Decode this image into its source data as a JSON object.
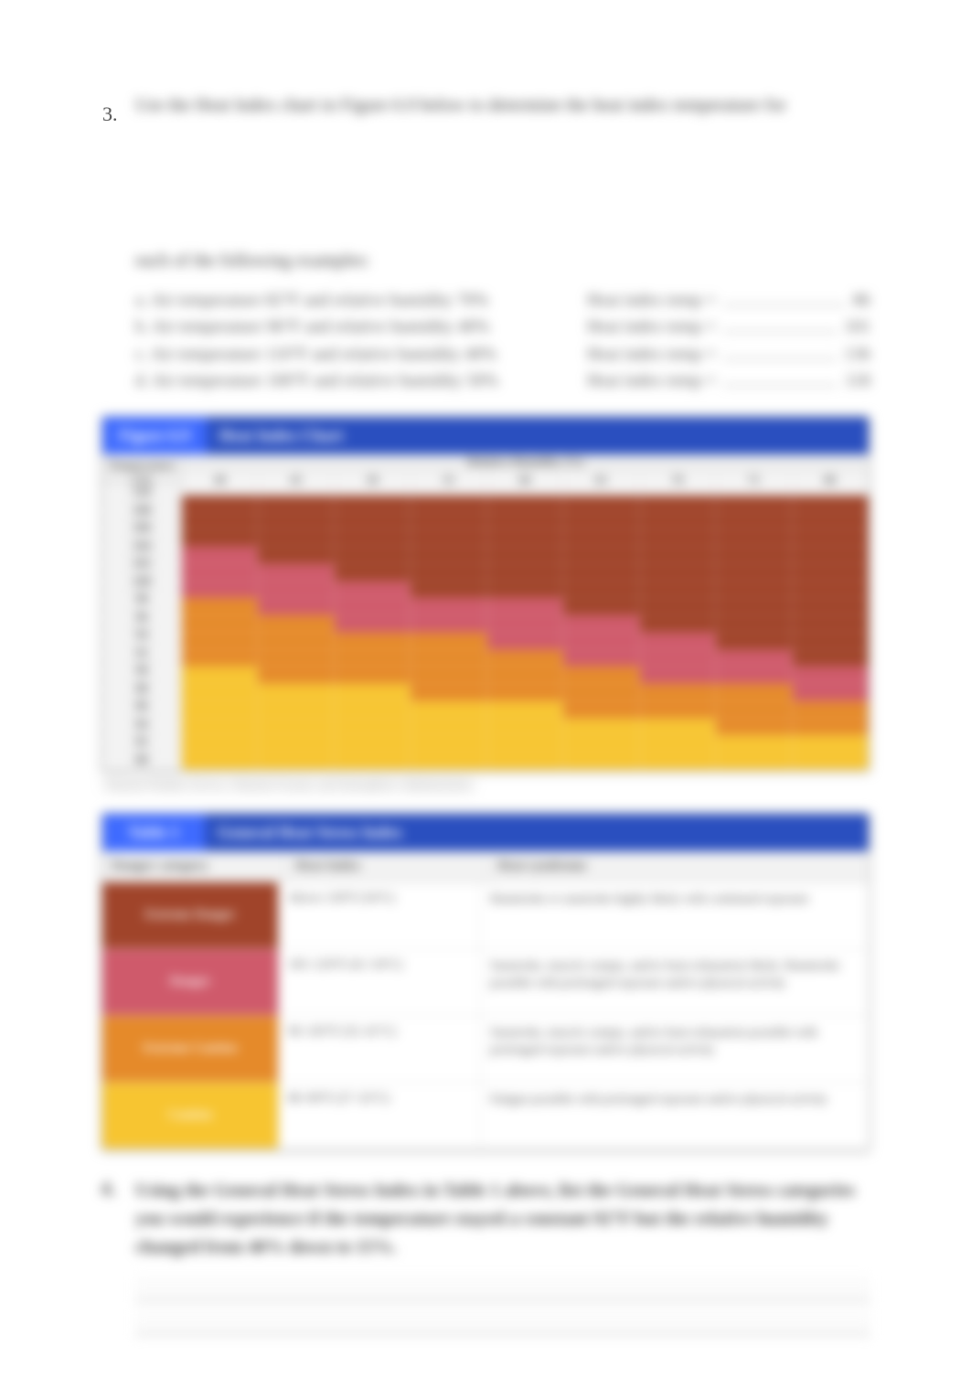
{
  "question3": {
    "number": "3.",
    "text_line1": "Use the Heat Index chart in Figure 6.9 below to determine the heat index temperature for",
    "text_line2": "each of the following examples:",
    "items": [
      {
        "label": "a.",
        "prompt": "Air temperature 82°F and relative humidity 70%",
        "answer_label": "Heat index temp =",
        "answer": "86"
      },
      {
        "label": "b.",
        "prompt": "Air temperature 96°F and relative humidity 40%",
        "answer_label": "Heat index temp =",
        "answer": "101"
      },
      {
        "label": "c.",
        "prompt": "Air temperature 110°F and relative humidity 40%",
        "answer_label": "Heat index temp =",
        "answer": "136"
      },
      {
        "label": "d.",
        "prompt": "Air temperature 100°F and relative humidity 50%",
        "answer_label": "Heat index temp =",
        "answer": "118"
      }
    ]
  },
  "figure": {
    "tag": "Figure 6.9",
    "title": "Heat Index Chart",
    "x_title": "Relative Humidity (%)",
    "y_title": "Temperature (°F)",
    "x_labels": [
      "40",
      "45",
      "50",
      "55",
      "60",
      "65",
      "70",
      "75",
      "80"
    ],
    "y_labels": [
      "110",
      "108",
      "106",
      "104",
      "102",
      "100",
      "98",
      "96",
      "94",
      "92",
      "90",
      "88",
      "86",
      "84",
      "82",
      "80"
    ],
    "caption": "National Weather Service, National Oceanic and Atmospheric Administration",
    "colors": {
      "caution": "#f7c531",
      "extreme_caution": "#e58a2a",
      "danger": "#cf5a6b",
      "extreme_danger": "#a0442a",
      "background": "#ffffff",
      "grid_border": "#ffffff"
    },
    "cells": [
      [
        4,
        4,
        4,
        4,
        4,
        4,
        4,
        4,
        4
      ],
      [
        4,
        4,
        4,
        4,
        4,
        4,
        4,
        4,
        4
      ],
      [
        4,
        4,
        4,
        4,
        4,
        4,
        4,
        4,
        4
      ],
      [
        3,
        4,
        4,
        4,
        4,
        4,
        4,
        4,
        4
      ],
      [
        3,
        3,
        4,
        4,
        4,
        4,
        4,
        4,
        4
      ],
      [
        3,
        3,
        3,
        4,
        4,
        4,
        4,
        4,
        4
      ],
      [
        2,
        3,
        3,
        3,
        3,
        4,
        4,
        4,
        4
      ],
      [
        2,
        2,
        3,
        3,
        3,
        3,
        4,
        4,
        4
      ],
      [
        2,
        2,
        2,
        2,
        3,
        3,
        3,
        4,
        4
      ],
      [
        2,
        2,
        2,
        2,
        2,
        3,
        3,
        3,
        4
      ],
      [
        1,
        2,
        2,
        2,
        2,
        2,
        3,
        3,
        3
      ],
      [
        1,
        1,
        1,
        2,
        2,
        2,
        2,
        2,
        3
      ],
      [
        1,
        1,
        1,
        1,
        1,
        2,
        2,
        2,
        2
      ],
      [
        1,
        1,
        1,
        1,
        1,
        1,
        1,
        2,
        2
      ],
      [
        1,
        1,
        1,
        1,
        1,
        1,
        1,
        1,
        1
      ],
      [
        1,
        1,
        1,
        1,
        1,
        1,
        1,
        1,
        1
      ]
    ]
  },
  "table": {
    "tag": "Table 1",
    "title": "General Heat Stress Index",
    "head": {
      "cat": "Danger category",
      "temp": "Heat Index",
      "syn": "Heat syndrome"
    },
    "rows": [
      {
        "color": "#a0442a",
        "category": "Extreme Danger",
        "temp": "Above 130°F (54°C)",
        "syndrome": "Heatstroke or sunstroke highly likely with continued exposure"
      },
      {
        "color": "#cf5a6b",
        "category": "Danger",
        "temp": "105–129°F (41–54°C)",
        "syndrome": "Sunstroke, muscle cramps, and/or heat exhaustion likely. Heatstroke possible with prolonged exposure and/or physical activity"
      },
      {
        "color": "#e58a2a",
        "category": "Extreme Caution",
        "temp": "90–105°F (32–41°C)",
        "syndrome": "Sunstroke, muscle cramps, and/or heat exhaustion possible with prolonged exposure and/or physical activity"
      },
      {
        "color": "#f7c531",
        "category": "Caution",
        "temp": "80–90°F (27–32°C)",
        "syndrome": "Fatigue possible with prolonged exposure and/or physical activity"
      }
    ]
  },
  "question4": {
    "number": "4.",
    "text": "Using the General Heat Stress Index in Table 1 above, list the General Heat Stress categories you would experience if the temperature stayed a constant 92°F but the relative humidity changed from 40% down to 15%."
  },
  "style": {
    "page_bg": "#ffffff",
    "header_blue": "#2a4fbf",
    "tag_blue": "#3f6bff",
    "text_color": "#333333"
  }
}
